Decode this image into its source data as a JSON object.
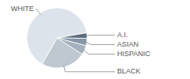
{
  "chart_data": {
    "type": "pie",
    "categories": [
      "A.I.",
      "ASIAN",
      "HISPANIC",
      "BLACK",
      "WHITE"
    ],
    "values": [
      3,
      4,
      5,
      24,
      64
    ],
    "colors": [
      "#5b6b7c",
      "#8797a8",
      "#a3b0bd",
      "#bfc8d1",
      "#dde3ea"
    ]
  }
}
